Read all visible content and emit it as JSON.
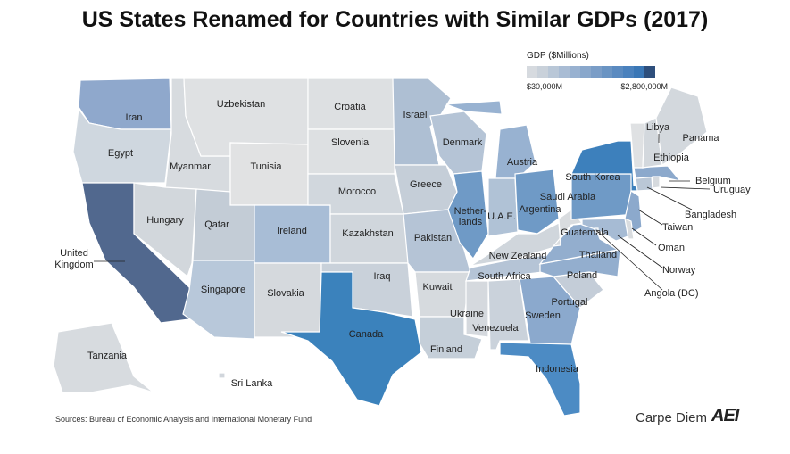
{
  "title": "US States Renamed for Countries with Similar GDPs (2017)",
  "legend": {
    "title": "GDP ($Millions)",
    "min_label": "$30,000M",
    "max_label": "$2,800,000M",
    "colors": [
      "#d6dadf",
      "#c9d1da",
      "#b9c7d7",
      "#a9bcd4",
      "#98b1d0",
      "#89a7cb",
      "#7a9dc7",
      "#6a94c3",
      "#5a8ac0",
      "#4a81bd",
      "#3a77b6",
      "#2e4f7c"
    ]
  },
  "states": [
    {
      "code": "WA",
      "country": "Iran",
      "color": "#8fa8cc"
    },
    {
      "code": "OR",
      "country": "Egypt",
      "color": "#cfd7df"
    },
    {
      "code": "CA",
      "country": "United Kingdom",
      "color": "#51688e"
    },
    {
      "code": "ID",
      "country": "Myanmar",
      "color": "#d7dbdf"
    },
    {
      "code": "NV",
      "country": "Hungary",
      "color": "#d2d7dc"
    },
    {
      "code": "MT",
      "country": "Uzbekistan",
      "color": "#dfe1e3"
    },
    {
      "code": "WY",
      "country": "Tunisia",
      "color": "#e1e2e3"
    },
    {
      "code": "UT",
      "country": "Qatar",
      "color": "#c3ccd6"
    },
    {
      "code": "AZ",
      "country": "Singapore",
      "color": "#b8c8da"
    },
    {
      "code": "CO",
      "country": "Ireland",
      "color": "#a8bdd6"
    },
    {
      "code": "NM",
      "country": "Slovakia",
      "color": "#d5d9dd"
    },
    {
      "code": "ND",
      "country": "Croatia",
      "color": "#dde0e2"
    },
    {
      "code": "SD",
      "country": "Slovenia",
      "color": "#dde0e2"
    },
    {
      "code": "NE",
      "country": "Morocco",
      "color": "#d1d7dd"
    },
    {
      "code": "KS",
      "country": "Kazakhstan",
      "color": "#d0d6dc"
    },
    {
      "code": "OK",
      "country": "Iraq",
      "color": "#c9d1da"
    },
    {
      "code": "TX",
      "country": "Canada",
      "color": "#3b82bc"
    },
    {
      "code": "MN",
      "country": "Israel",
      "color": "#aebfd3"
    },
    {
      "code": "IA",
      "country": "Greece",
      "color": "#c5ced8"
    },
    {
      "code": "MO",
      "country": "Pakistan",
      "color": "#b5c4d6"
    },
    {
      "code": "AR",
      "country": "Kuwait",
      "color": "#d6dade"
    },
    {
      "code": "LA",
      "country": "Finland",
      "color": "#c5cfd9"
    },
    {
      "code": "WI",
      "country": "Denmark",
      "color": "#b5c4d6"
    },
    {
      "code": "IL",
      "country": "Nether-lands",
      "color": "#6f9ac6"
    },
    {
      "code": "MI",
      "country": "Austria",
      "color": "#98b2d1"
    },
    {
      "code": "IN",
      "country": "U.A.E.",
      "color": "#b0c2d6"
    },
    {
      "code": "OH",
      "country": "Argentina",
      "color": "#6f9ac6"
    },
    {
      "code": "KY",
      "country": "New Zealand",
      "color": "#d0d6dc"
    },
    {
      "code": "TN",
      "country": "South Africa",
      "color": "#b5c4d6"
    },
    {
      "code": "MS",
      "country": "Ukraine",
      "color": "#d5d9de"
    },
    {
      "code": "AL",
      "country": "Venezuela",
      "color": "#cad2db"
    },
    {
      "code": "GA",
      "country": "Sweden",
      "color": "#8ba9cd"
    },
    {
      "code": "FL",
      "country": "Indonesia",
      "color": "#4c8bc4"
    },
    {
      "code": "SC",
      "country": "Portugal",
      "color": "#c4cdd8"
    },
    {
      "code": "NC",
      "country": "Poland",
      "color": "#93aece"
    },
    {
      "code": "VA",
      "country": "Thailand",
      "color": "#93aece"
    },
    {
      "code": "WV",
      "country": "Guatemala",
      "color": "#d9dcdf"
    },
    {
      "code": "PA",
      "country": "Saudi Arabia",
      "color": "#6f9ac6"
    },
    {
      "code": "NY",
      "country": "South Korea",
      "color": "#3d80bc"
    },
    {
      "code": "NJ",
      "country": "Taiwan",
      "color": "#8ca9cc"
    },
    {
      "code": "MD",
      "country": "Norway",
      "color": "#a6bbd4"
    },
    {
      "code": "DE",
      "country": "Oman",
      "color": "#d9dcdf"
    },
    {
      "code": "DC",
      "country": "Angola (DC)",
      "color": "#b9c7d7"
    },
    {
      "code": "CT",
      "country": "Bangladesh",
      "color": "#bac7d6"
    },
    {
      "code": "MA",
      "country": "Belgium",
      "color": "#8ca9cc"
    },
    {
      "code": "RI",
      "country": "Uruguay",
      "color": "#d6dade"
    },
    {
      "code": "VT",
      "country": "Libya",
      "color": "#dfe1e3"
    },
    {
      "code": "NH",
      "country": "Ethiopia",
      "color": "#d3d8dd"
    },
    {
      "code": "ME",
      "country": "Panama",
      "color": "#d3d8dd"
    },
    {
      "code": "AK",
      "country": "Tanzania",
      "color": "#d7dbdf"
    },
    {
      "code": "HI",
      "country": "Sri Lanka",
      "color": "#d1d6dc"
    }
  ],
  "source": "Sources: Bureau of Economic Analysis and International Monetary Fund",
  "brand": "Carpe Diem",
  "logo": "AEI"
}
